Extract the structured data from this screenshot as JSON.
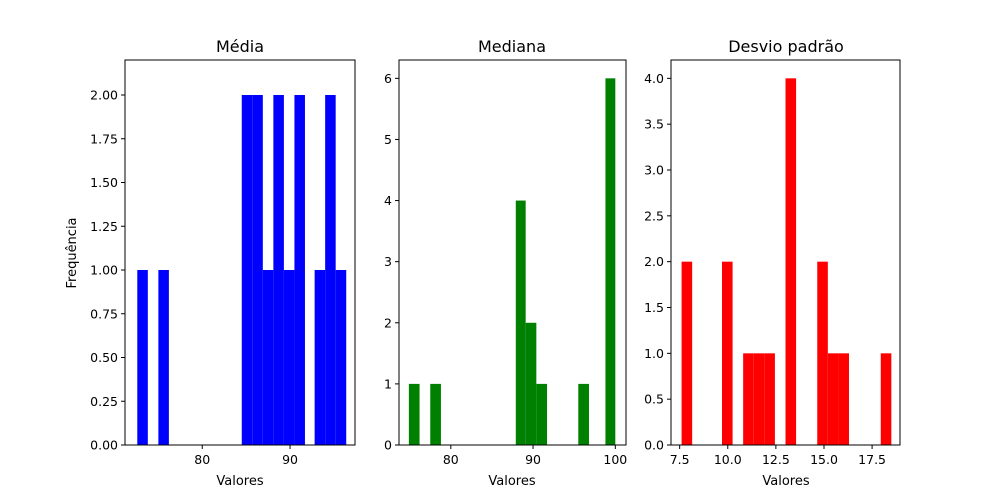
{
  "chart_data": [
    {
      "type": "bar",
      "title": "Média",
      "xlabel": "Valores",
      "ylabel": "Frequência",
      "color": "#0000ff",
      "xlim": [
        71.2,
        97.4
      ],
      "ylim": [
        0,
        2.2
      ],
      "xticks": [
        80,
        90
      ],
      "yticks": [
        "0.00",
        "0.25",
        "0.50",
        "0.75",
        "1.00",
        "1.25",
        "1.50",
        "1.75",
        "2.00"
      ],
      "bins": [
        {
          "x0": 72.6,
          "x1": 73.8,
          "count": 1
        },
        {
          "x0": 75.0,
          "x1": 76.2,
          "count": 1
        },
        {
          "x0": 84.5,
          "x1": 85.7,
          "count": 2
        },
        {
          "x0": 85.7,
          "x1": 86.9,
          "count": 2
        },
        {
          "x0": 86.9,
          "x1": 88.1,
          "count": 1
        },
        {
          "x0": 88.1,
          "x1": 89.3,
          "count": 2
        },
        {
          "x0": 89.3,
          "x1": 90.5,
          "count": 1
        },
        {
          "x0": 90.5,
          "x1": 91.7,
          "count": 2
        },
        {
          "x0": 92.8,
          "x1": 94.0,
          "count": 1
        },
        {
          "x0": 94.0,
          "x1": 95.2,
          "count": 2
        },
        {
          "x0": 95.2,
          "x1": 96.4,
          "count": 1
        }
      ]
    },
    {
      "type": "bar",
      "title": "Mediana",
      "xlabel": "Valores",
      "ylabel": "",
      "color": "#008000",
      "xlim": [
        73.7,
        101.3
      ],
      "ylim": [
        0,
        6.3
      ],
      "xticks": [
        80,
        90,
        100
      ],
      "yticks": [
        "0",
        "1",
        "2",
        "3",
        "4",
        "5",
        "6"
      ],
      "bins": [
        {
          "x0": 74.9,
          "x1": 76.2,
          "count": 1
        },
        {
          "x0": 77.5,
          "x1": 78.8,
          "count": 1
        },
        {
          "x0": 87.9,
          "x1": 89.1,
          "count": 4
        },
        {
          "x0": 89.1,
          "x1": 90.4,
          "count": 2
        },
        {
          "x0": 90.4,
          "x1": 91.7,
          "count": 1
        },
        {
          "x0": 95.5,
          "x1": 96.8,
          "count": 1
        },
        {
          "x0": 98.8,
          "x1": 100.0,
          "count": 6
        }
      ]
    },
    {
      "type": "bar",
      "title": "Desvio padrão",
      "xlabel": "Valores",
      "ylabel": "",
      "color": "#ff0000",
      "xlim": [
        7.05,
        18.95
      ],
      "ylim": [
        0,
        4.2
      ],
      "xticks": [
        "7.5",
        "10.0",
        "12.5",
        "15.0",
        "17.5"
      ],
      "yticks": [
        "0.0",
        "0.5",
        "1.0",
        "1.5",
        "2.0",
        "2.5",
        "3.0",
        "3.5",
        "4.0"
      ],
      "bins": [
        {
          "x0": 7.6,
          "x1": 8.15,
          "count": 2
        },
        {
          "x0": 9.7,
          "x1": 10.25,
          "count": 2
        },
        {
          "x0": 10.8,
          "x1": 11.35,
          "count": 1
        },
        {
          "x0": 11.35,
          "x1": 11.9,
          "count": 1
        },
        {
          "x0": 11.9,
          "x1": 12.45,
          "count": 1
        },
        {
          "x0": 13.0,
          "x1": 13.55,
          "count": 4
        },
        {
          "x0": 14.65,
          "x1": 15.2,
          "count": 2
        },
        {
          "x0": 15.2,
          "x1": 15.75,
          "count": 1
        },
        {
          "x0": 15.75,
          "x1": 16.3,
          "count": 1
        },
        {
          "x0": 17.95,
          "x1": 18.5,
          "count": 1
        }
      ]
    }
  ]
}
